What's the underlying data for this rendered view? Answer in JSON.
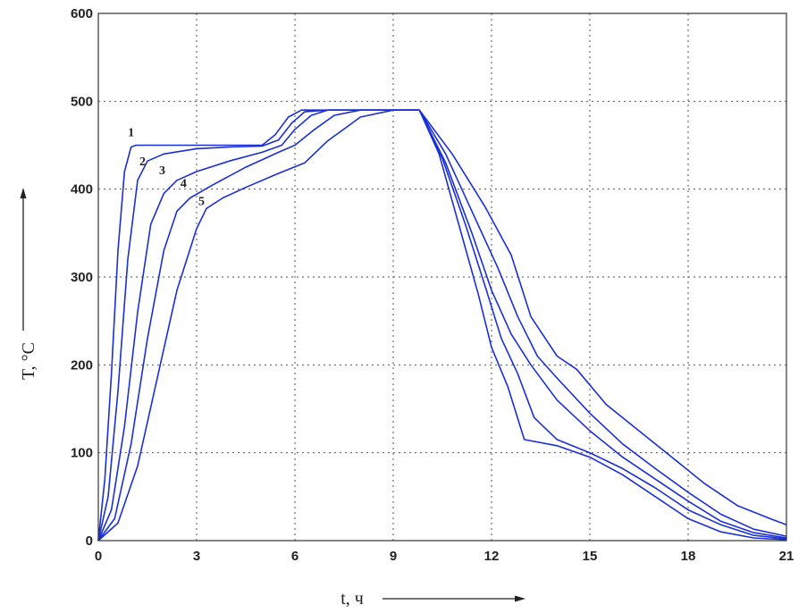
{
  "chart_data": {
    "type": "line",
    "xlabel": "t, ч",
    "ylabel": "T, °C",
    "xlim": [
      0,
      21
    ],
    "ylim": [
      0,
      600
    ],
    "xticks": [
      0,
      3,
      6,
      9,
      12,
      15,
      18,
      21
    ],
    "yticks": [
      0,
      100,
      200,
      300,
      400,
      500,
      600
    ],
    "xtick_labels": [
      "0",
      "3",
      "6",
      "9",
      "12",
      "15",
      "18",
      "21"
    ],
    "ytick_labels": [
      "0",
      "100",
      "200",
      "300",
      "400",
      "500",
      "600"
    ],
    "grid": true,
    "series_color": "#1a2fd6",
    "series": [
      {
        "label": "1",
        "label_at": [
          1.0,
          460
        ],
        "x": [
          0,
          0.2,
          0.4,
          0.6,
          0.8,
          1.0,
          1.15,
          2,
          3,
          4,
          5,
          5.4,
          5.8,
          6.2,
          7,
          8,
          9,
          9.8,
          10.4,
          11.0,
          11.6,
          12.0,
          12.5,
          13.0,
          14,
          15,
          16,
          17,
          18,
          19,
          20,
          21
        ],
        "y": [
          0,
          70,
          190,
          330,
          420,
          448,
          450,
          450,
          450,
          450,
          450,
          462,
          482,
          490,
          490,
          490,
          490,
          490,
          440,
          360,
          280,
          220,
          175,
          115,
          108,
          95,
          75,
          50,
          25,
          10,
          3,
          1
        ]
      },
      {
        "label": "2",
        "label_at": [
          1.35,
          427
        ],
        "x": [
          0,
          0.3,
          0.6,
          0.9,
          1.2,
          1.5,
          2,
          3,
          4,
          5,
          5.5,
          5.9,
          6.3,
          7,
          8,
          9,
          9.8,
          10.5,
          11.2,
          11.8,
          12.3,
          12.8,
          13.3,
          14,
          15,
          16,
          17,
          18,
          19,
          20,
          21
        ],
        "y": [
          0,
          50,
          170,
          320,
          410,
          432,
          440,
          446,
          448,
          449,
          456,
          475,
          488,
          490,
          490,
          490,
          490,
          435,
          360,
          290,
          230,
          190,
          140,
          115,
          100,
          82,
          60,
          35,
          18,
          6,
          2
        ]
      },
      {
        "label": "3",
        "label_at": [
          1.95,
          417
        ],
        "x": [
          0,
          0.4,
          0.8,
          1.2,
          1.6,
          2.0,
          2.4,
          3,
          4,
          5,
          5.6,
          6.0,
          6.5,
          7,
          8,
          9,
          9.8,
          10.6,
          11.4,
          12.0,
          12.6,
          13.2,
          14,
          15,
          16,
          17,
          18,
          19,
          20,
          21
        ],
        "y": [
          0,
          35,
          130,
          260,
          360,
          395,
          410,
          420,
          432,
          442,
          450,
          468,
          484,
          490,
          490,
          490,
          490,
          430,
          350,
          285,
          235,
          200,
          160,
          125,
          95,
          70,
          45,
          22,
          9,
          3
        ]
      },
      {
        "label": "4",
        "label_at": [
          2.6,
          402
        ],
        "x": [
          0,
          0.5,
          1.0,
          1.5,
          2.0,
          2.4,
          2.8,
          3.5,
          4.5,
          5.5,
          6.0,
          6.6,
          7.2,
          8,
          9,
          9.8,
          10.6,
          11.4,
          12.2,
          12.8,
          13.4,
          14,
          15,
          16,
          17,
          18,
          19,
          20,
          21
        ],
        "y": [
          0,
          25,
          110,
          230,
          330,
          375,
          390,
          405,
          425,
          442,
          450,
          468,
          484,
          490,
          490,
          490,
          440,
          375,
          310,
          255,
          210,
          185,
          145,
          110,
          82,
          55,
          30,
          13,
          5
        ]
      },
      {
        "label": "5",
        "label_at": [
          3.15,
          382
        ],
        "x": [
          0,
          0.6,
          1.2,
          1.8,
          2.4,
          3.0,
          3.3,
          3.8,
          4.5,
          5.5,
          6.3,
          7.0,
          8.0,
          9,
          9.8,
          10.8,
          11.8,
          12.6,
          13.2,
          14,
          14.6,
          15.5,
          16.5,
          17.5,
          18.5,
          19.5,
          20.5,
          21
        ],
        "y": [
          0,
          20,
          85,
          185,
          285,
          355,
          378,
          390,
          402,
          418,
          430,
          455,
          482,
          490,
          490,
          440,
          380,
          325,
          255,
          210,
          195,
          155,
          125,
          95,
          65,
          40,
          25,
          18
        ]
      }
    ]
  }
}
